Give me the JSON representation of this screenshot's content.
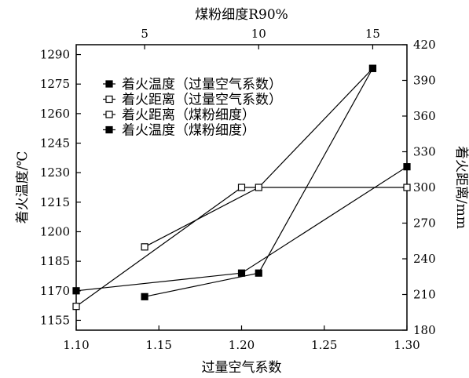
{
  "chart_data": {
    "type": "line",
    "xlabel": "过量空气系数",
    "x2label": "煤粉细度R90%",
    "ylabel": "着火温度/℃",
    "y2label": "着火距离/mm",
    "x_bottom": {
      "range": [
        1.1,
        1.3
      ],
      "ticks": [
        1.1,
        1.15,
        1.2,
        1.25,
        1.3
      ],
      "tick_labels": [
        "1.10",
        "1.15",
        "1.20",
        "1.25",
        "1.30"
      ]
    },
    "x_top": {
      "range": [
        2,
        16.5
      ],
      "ticks": [
        5,
        10,
        15
      ],
      "tick_labels": [
        "5",
        "10",
        "15"
      ]
    },
    "y_left": {
      "range": [
        1150,
        1295
      ],
      "ticks": [
        1155,
        1170,
        1185,
        1200,
        1215,
        1230,
        1245,
        1260,
        1275,
        1290
      ],
      "tick_labels": [
        "1155",
        "1170",
        "1185",
        "1200",
        "1215",
        "1230",
        "1245",
        "1260",
        "1275",
        "1290"
      ]
    },
    "y_right": {
      "range": [
        180,
        420
      ],
      "ticks": [
        180,
        210,
        240,
        270,
        300,
        330,
        360,
        390,
        420
      ],
      "tick_labels": [
        "180",
        "210",
        "240",
        "270",
        "300",
        "330",
        "360",
        "390",
        "420"
      ]
    },
    "legend": {
      "position": "top-left"
    },
    "series": [
      {
        "name": "着火温度（过量空气系数）",
        "marker": "filled-square",
        "x_axis": "bottom",
        "y_axis": "left",
        "x": [
          1.1,
          1.2,
          1.3
        ],
        "y": [
          1170,
          1179,
          1233
        ]
      },
      {
        "name": "着火距离（过量空气系数）",
        "marker": "open-square",
        "x_axis": "bottom",
        "y_axis": "right",
        "x": [
          1.1,
          1.2,
          1.3
        ],
        "y": [
          200,
          300,
          300
        ]
      },
      {
        "name": "着火距离（煤粉细度）",
        "marker": "open-square",
        "x_axis": "top",
        "y_axis": "right",
        "x": [
          5,
          10,
          15
        ],
        "y": [
          250,
          300,
          400
        ]
      },
      {
        "name": "着火温度（煤粉细度）",
        "marker": "filled-square",
        "x_axis": "top",
        "y_axis": "left",
        "x": [
          5,
          10,
          15
        ],
        "y": [
          1167,
          1179,
          1283
        ]
      }
    ]
  }
}
